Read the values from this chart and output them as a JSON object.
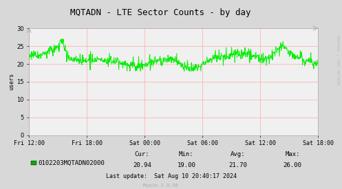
{
  "title": "MQTADN - LTE Sector Counts - by day",
  "ylabel": "users",
  "ylim": [
    0,
    30
  ],
  "yticks": [
    0,
    5,
    10,
    15,
    20,
    25,
    30
  ],
  "bg_color": "#d8d8d8",
  "plot_bg_color": "#f0f0f0",
  "line_color": "#00ee00",
  "grid_color": "#ff9999",
  "xtick_labels": [
    "Fri 12:00",
    "Fri 18:00",
    "Sat 00:00",
    "Sat 06:00",
    "Sat 12:00",
    "Sat 18:00"
  ],
  "legend_label": "0102203MQTADN02000",
  "legend_color": "#00aa00",
  "cur_label": "Cur:",
  "min_label": "Min:",
  "avg_label": "Avg:",
  "max_label": "Max:",
  "cur": "20.94",
  "min": "19.00",
  "avg": "21.70",
  "max": "26.00",
  "last_update": "Last update:  Sat Aug 10 20:40:17 2024",
  "munin_version": "Munin 2.0.56",
  "watermark": "RRDTOOL / TOBI OETIKER",
  "title_fontsize": 9,
  "axis_fontsize": 6,
  "legend_fontsize": 6.5,
  "stats_fontsize": 6.5
}
